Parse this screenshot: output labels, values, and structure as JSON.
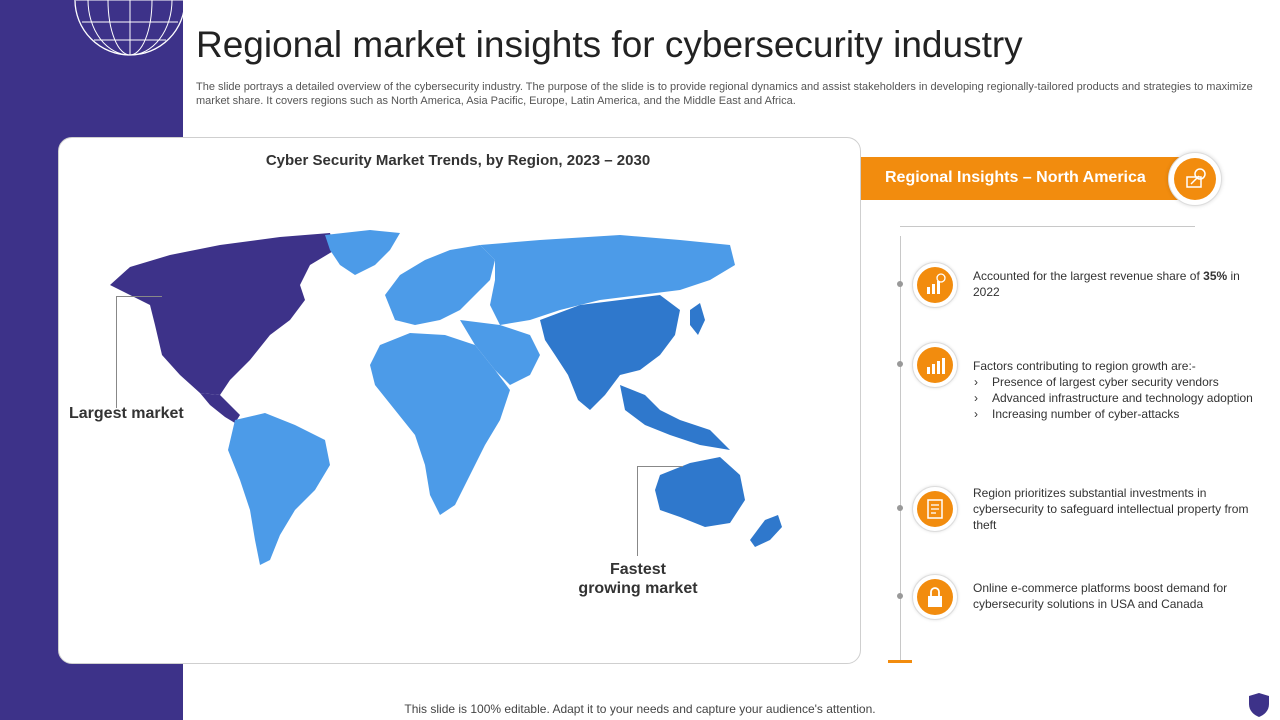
{
  "title": "Regional market insights for cybersecurity industry",
  "subtitle": "The slide portrays a detailed overview of the cybersecurity industry. The purpose of the slide is to provide regional dynamics and assist stakeholders in developing regionally-tailored products and strategies to maximize market share. It covers regions such as North America, Asia Pacific, Europe, Latin America, and the Middle East and Africa.",
  "map": {
    "title": "Cyber Security Market Trends, by Region, 2023 – 2030",
    "label_largest": "Largest market",
    "label_fastest_line1": "Fastest",
    "label_fastest_line2": "growing market"
  },
  "insights": {
    "banner": "Regional Insights – North America",
    "item1_pre": "Accounted for the largest revenue  share of ",
    "item1_bold": "35%",
    "item1_post": " in 2022",
    "item2_intro": "Factors contributing to region growth  are:-",
    "item2_bullets": [
      "Presence of largest cyber security vendors",
      "Advanced infrastructure  and technology adoption",
      "Increasing number of cyber-attacks"
    ],
    "item3": "Region  prioritizes substantial investments  in cybersecurity to safeguard  intellectual property from theft",
    "item4": "Online  e-commerce  platforms boost demand for cybersecurity solutions in USA and Canada"
  },
  "footer": "This slide is 100% editable. Adapt it to your needs and capture your audience's attention.",
  "colors": {
    "sidebar": "#3d3289",
    "accent": "#f28c0e",
    "map_light": "#4c9be8",
    "map_dark": "#2f78cc",
    "map_north_america": "#3d3289"
  }
}
